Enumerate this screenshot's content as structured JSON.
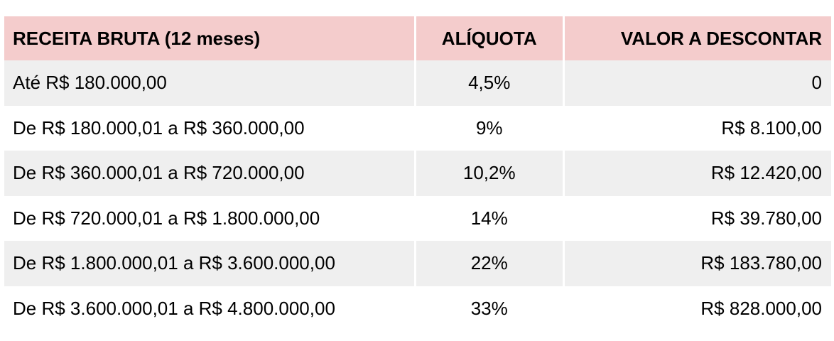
{
  "table": {
    "headers": [
      "RECEITA BRUTA (12 meses)",
      "ALÍQUOTA",
      "VALOR A DESCONTAR"
    ],
    "rows": [
      [
        "Até R$ 180.000,00",
        "4,5%",
        "0"
      ],
      [
        "De R$ 180.000,01 a R$ 360.000,00",
        "9%",
        "R$ 8.100,00"
      ],
      [
        "De R$ 360.000,01 a R$ 720.000,00",
        "10,2%",
        "R$ 12.420,00"
      ],
      [
        "De R$ 720.000,01 a R$ 1.800.000,00",
        "14%",
        "R$ 39.780,00"
      ],
      [
        "De R$ 1.800.000,01 a R$ 3.600.000,00",
        "22%",
        "R$ 183.780,00"
      ],
      [
        "De R$ 3.600.000,01 a R$ 4.800.000,00",
        "33%",
        "R$ 828.000,00"
      ]
    ],
    "colors": {
      "header_background": "#f4cccc",
      "shaded_row_background": "#efefef",
      "plain_row_background": "#ffffff"
    }
  }
}
